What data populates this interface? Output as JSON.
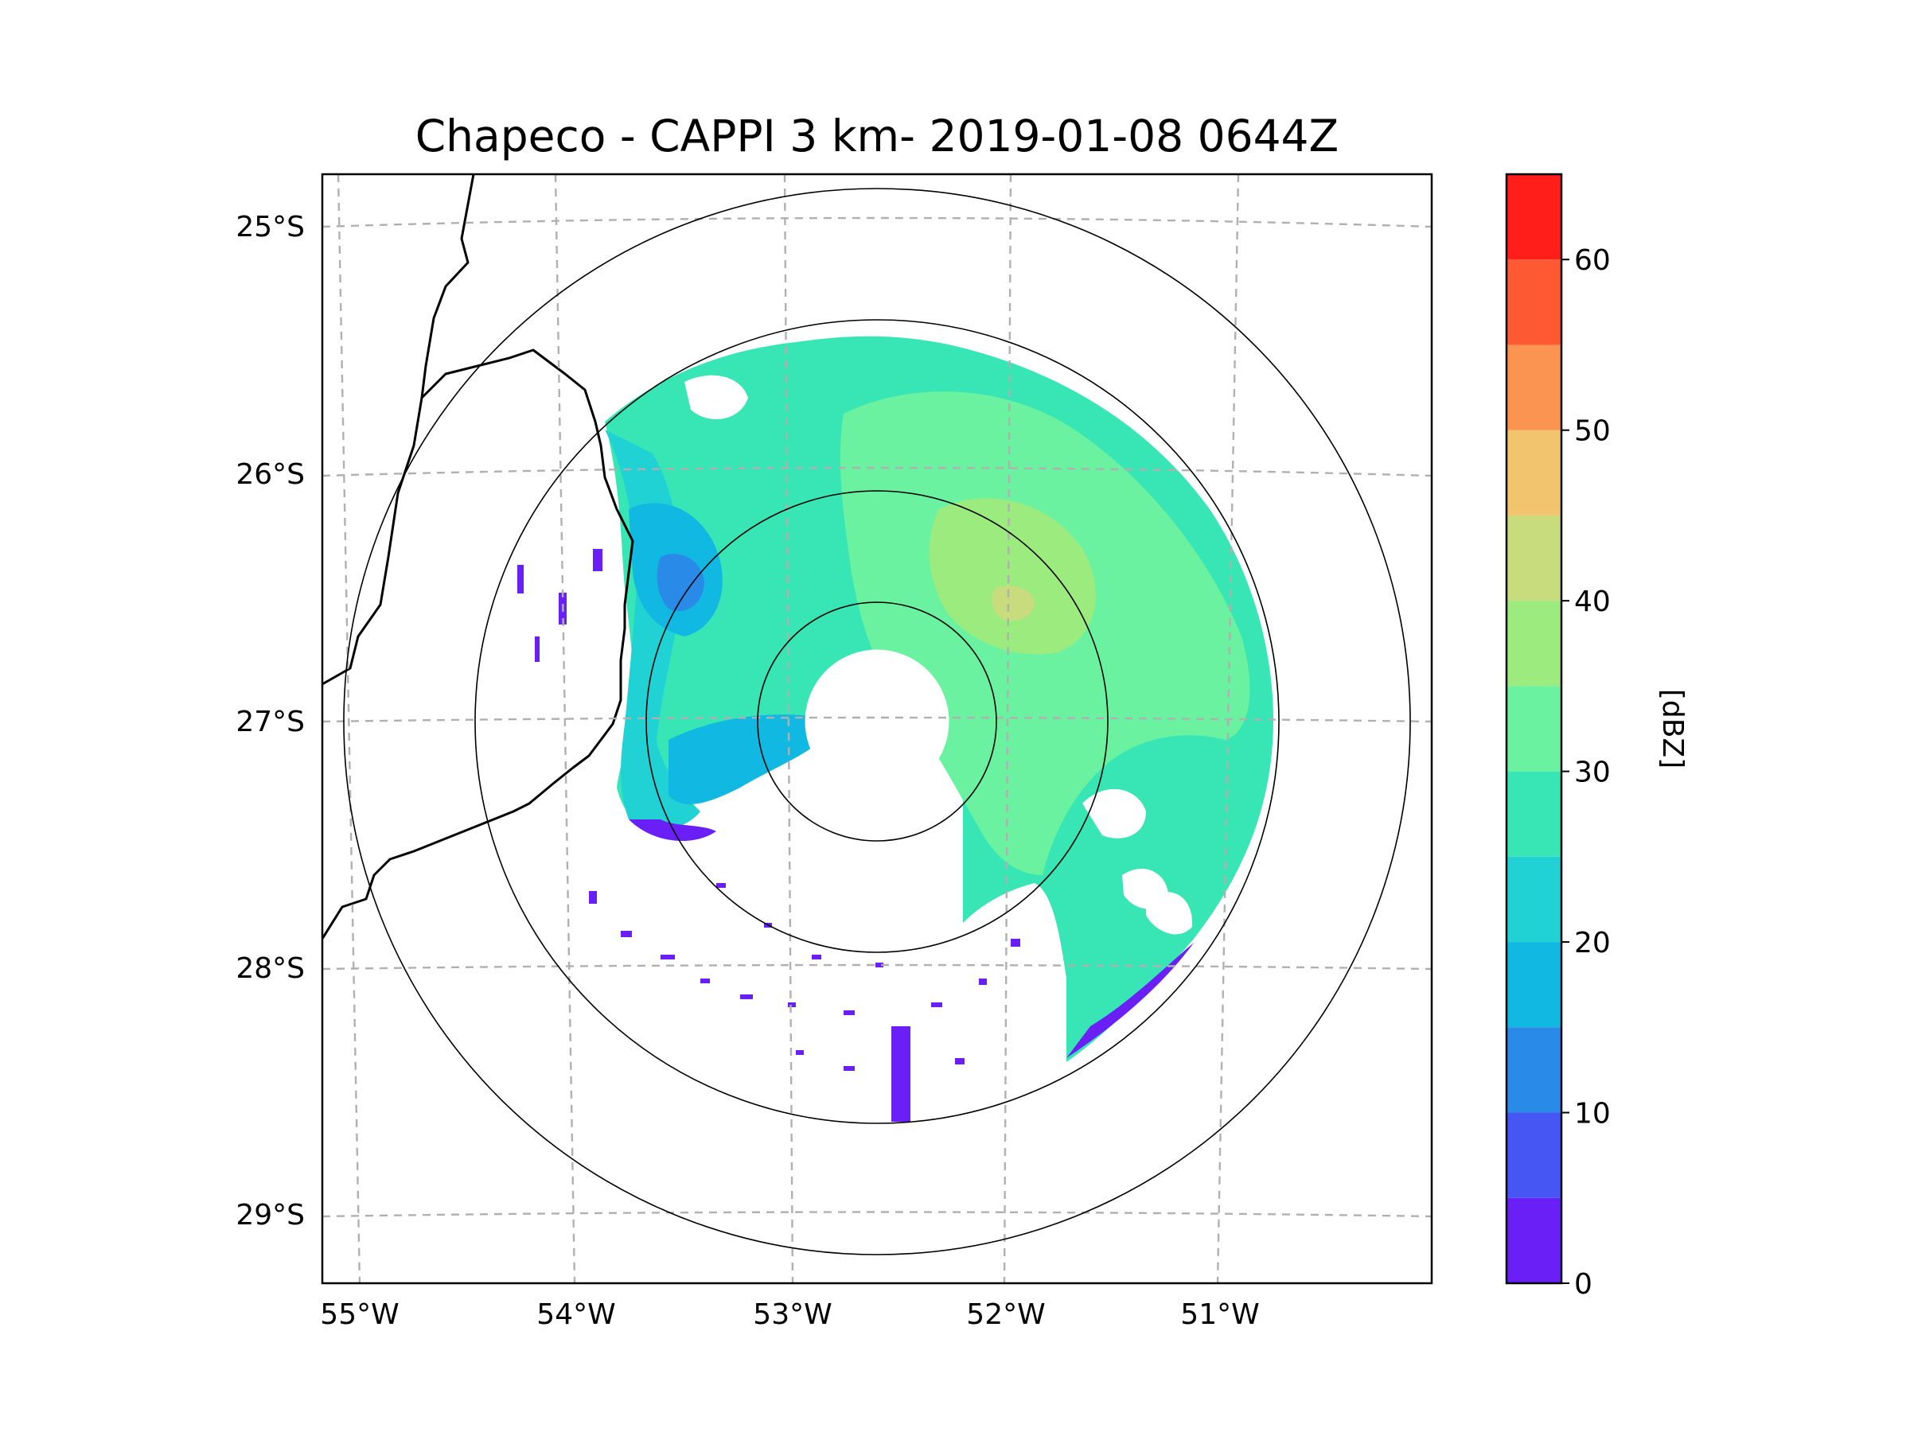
{
  "title": "Chapeco - CAPPI 3 km- 2019-01-08 0644Z",
  "map": {
    "lon_range": [
      -55.2,
      -50.1
    ],
    "lat_range": [
      -29.28,
      -24.78
    ],
    "lon_ticks": [
      {
        "value": -55,
        "label": "55°W"
      },
      {
        "value": -54,
        "label": "54°W"
      },
      {
        "value": -53,
        "label": "53°W"
      },
      {
        "value": -52,
        "label": "52°W"
      },
      {
        "value": -51,
        "label": "51°W"
      }
    ],
    "lat_ticks": [
      {
        "value": -25,
        "label": "25°S"
      },
      {
        "value": -26,
        "label": "26°S"
      },
      {
        "value": -27,
        "label": "27°S"
      },
      {
        "value": -28,
        "label": "28°S"
      },
      {
        "value": -29,
        "label": "29°S"
      }
    ],
    "gridlines": "dashed",
    "radar_center": {
      "lon": -52.6,
      "lat": -27.03
    },
    "range_rings_deg": [
      0.45,
      0.93,
      1.83,
      2.4
    ]
  },
  "colorbar": {
    "label": "[dBZ]",
    "ticks": [
      "0",
      "10",
      "20",
      "30",
      "40",
      "50",
      "60"
    ],
    "min": 0,
    "max": 65,
    "step": 5,
    "colors": [
      "#6a1ff7",
      "#4656f2",
      "#2a8ae8",
      "#10b8e2",
      "#21d2d4",
      "#38e5b4",
      "#6af2a0",
      "#9beb7f",
      "#c9dc7d",
      "#f2c46d",
      "#fb9351",
      "#fd5a34",
      "#ff1e1a"
    ]
  }
}
